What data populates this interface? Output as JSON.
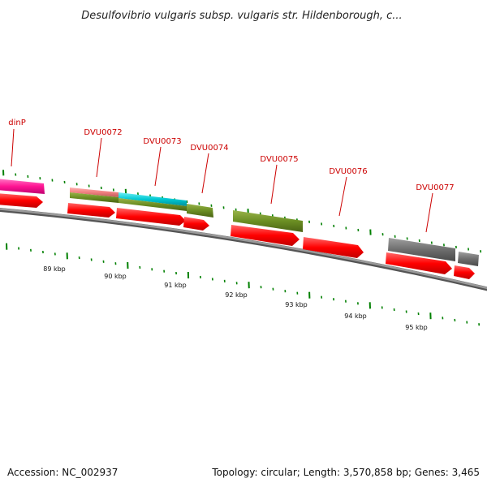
{
  "title": "Desulfovibrio vulgaris subsp. vulgaris str. Hildenborough, c...",
  "footer": {
    "accession": "Accession: NC_002937",
    "summary": "Topology: circular; Length: 3,570,858 bp; Genes: 3,465"
  },
  "gene_labels": [
    "dinP",
    "DVU0072",
    "DVU0073",
    "DVU0074",
    "DVU0075",
    "DVU0076",
    "DVU0077"
  ],
  "kbp_labels": [
    "89 kbp",
    "90 kbp",
    "91 kbp",
    "92 kbp",
    "93 kbp",
    "94 kbp",
    "95 kbp"
  ],
  "colors": {
    "cds": "#ff0000",
    "dinp": "#ff1493",
    "teal": "#00c8d2",
    "salmon": "#f08080",
    "olive": "#6b8e23",
    "gray": "#707070",
    "backbone": "#808080",
    "ticks": "#008000",
    "label": "#cc0000"
  }
}
